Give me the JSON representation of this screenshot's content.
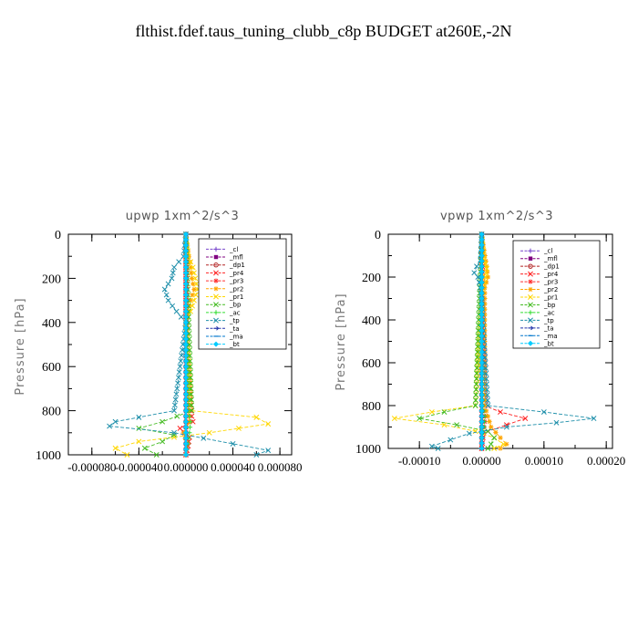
{
  "title": "flthist.fdef.taus_tuning_clubb_c8p  BUDGET at260E,-2N",
  "chart_data": [
    {
      "type": "line",
      "title": "upwp   1xm^2/s^3",
      "ylabel": "Pressure  [hPa]",
      "xlabel": "",
      "xlim": [
        -0.0001,
        9e-05
      ],
      "ylim": [
        1000,
        0
      ],
      "xticks": [
        -8e-05,
        -4e-05,
        0.0,
        4e-05,
        8e-05
      ],
      "xtick_labels": [
        "-0.000080",
        "-0.000040",
        "0.000000",
        "0.000040",
        "0.000080"
      ],
      "yticks": [
        0,
        200,
        400,
        600,
        800,
        1000
      ],
      "ytick_labels": [
        "0",
        "200",
        "400",
        "600",
        "800",
        "1000"
      ],
      "legend_position": "top-right",
      "series": [
        {
          "name": "_cl",
          "color": "#7744cc",
          "marker": "plus",
          "y": [
            0,
            100,
            200,
            300,
            400,
            500,
            600,
            700,
            800,
            850,
            900,
            950,
            1000
          ],
          "values": [
            0,
            0,
            0,
            0,
            0,
            0,
            0,
            0,
            0,
            0,
            0,
            0,
            0
          ]
        },
        {
          "name": "_mfl",
          "color": "#800080",
          "marker": "square",
          "y": [
            0,
            100,
            200,
            300,
            400,
            500,
            600,
            700,
            800,
            850,
            900,
            950,
            1000
          ],
          "values": [
            0,
            0,
            0,
            0,
            0,
            0,
            0,
            0,
            0,
            0,
            0,
            0,
            0
          ]
        },
        {
          "name": "_dp1",
          "color": "#b22222",
          "marker": "circle",
          "y": [
            0,
            100,
            200,
            300,
            400,
            500,
            600,
            700,
            800,
            850,
            900,
            950,
            1000
          ],
          "values": [
            0,
            0,
            0,
            0,
            0,
            0,
            0,
            0,
            0,
            0,
            0,
            0,
            0
          ]
        },
        {
          "name": "_pr4",
          "color": "#ff2020",
          "marker": "x",
          "y": [
            0,
            200,
            400,
            800,
            850,
            880,
            920,
            960,
            1000
          ],
          "values": [
            0,
            0,
            0,
            4e-06,
            6e-06,
            -5e-06,
            3e-06,
            2e-06,
            0
          ]
        },
        {
          "name": "_pr3",
          "color": "#ff3030",
          "marker": "star",
          "y": [
            0,
            800,
            850,
            900,
            950,
            1000
          ],
          "values": [
            0,
            2e-06,
            3e-06,
            -2e-06,
            1e-06,
            0
          ]
        },
        {
          "name": "_pr2",
          "color": "#ffa500",
          "marker": "star",
          "y": [
            0,
            150,
            200,
            250,
            300,
            350,
            400,
            800,
            850,
            900,
            950,
            1000
          ],
          "values": [
            0,
            4e-06,
            5e-06,
            7e-06,
            4e-06,
            2e-06,
            0,
            2e-06,
            3e-06,
            -2e-06,
            1e-06,
            0
          ]
        },
        {
          "name": "_pr1",
          "color": "#ffd700",
          "marker": "x",
          "y": [
            0,
            100,
            150,
            200,
            250,
            300,
            350,
            400,
            800,
            830,
            860,
            900,
            940,
            970,
            1000
          ],
          "values": [
            0,
            2e-06,
            6e-06,
            8e-06,
            1e-05,
            7e-06,
            4e-06,
            0,
            5e-06,
            6e-05,
            7e-05,
            2e-05,
            -4e-05,
            -6e-05,
            -5e-05
          ]
        },
        {
          "name": "_bp",
          "color": "#44bb22",
          "marker": "x",
          "y": [
            0,
            800,
            850,
            880,
            910,
            940,
            970,
            1000
          ],
          "values": [
            0,
            5e-06,
            -2e-05,
            -4e-05,
            -1e-05,
            -2e-05,
            -3.5e-05,
            -2.5e-05
          ]
        },
        {
          "name": "_ac",
          "color": "#33dd33",
          "marker": "plus",
          "y": [
            0,
            800,
            850,
            900,
            950,
            1000
          ],
          "values": [
            0,
            2e-06,
            4e-06,
            3e-06,
            2e-06,
            0
          ]
        },
        {
          "name": "_tp",
          "color": "#1e8faa",
          "marker": "x",
          "y": [
            0,
            100,
            150,
            200,
            250,
            300,
            350,
            400,
            800,
            830,
            850,
            870,
            900,
            950,
            980,
            1000
          ],
          "values": [
            0,
            -2e-06,
            -1e-05,
            -1.2e-05,
            -1.8e-05,
            -1.5e-05,
            -8e-06,
            0,
            -1e-05,
            -4e-05,
            -6e-05,
            -6.5e-05,
            -1e-05,
            4e-05,
            7e-05,
            6e-05
          ]
        },
        {
          "name": "_ta",
          "color": "#2233aa",
          "marker": "arrow",
          "y": [
            0,
            100,
            200,
            300,
            400,
            500,
            600,
            700,
            800,
            900,
            1000
          ],
          "values": [
            0,
            0,
            0,
            0,
            0,
            0,
            0,
            0,
            0,
            0,
            0
          ]
        },
        {
          "name": "_ma",
          "color": "#0077cc",
          "marker": "dash",
          "y": [
            0,
            100,
            200,
            300,
            400,
            500,
            600,
            700,
            800,
            900,
            1000
          ],
          "values": [
            0,
            0,
            0,
            0,
            0,
            0,
            0,
            0,
            0,
            0,
            0
          ]
        },
        {
          "name": "_bt",
          "color": "#00ccff",
          "marker": "diamond",
          "y": [
            0,
            100,
            200,
            300,
            400,
            500,
            600,
            700,
            800,
            900,
            1000
          ],
          "values": [
            0,
            0,
            0,
            0,
            0,
            0,
            0,
            0,
            0,
            0,
            0
          ]
        }
      ]
    },
    {
      "type": "line",
      "title": "vpwp   1xm^2/s^3",
      "ylabel": "Pressure  [hPa]",
      "xlabel": "",
      "xlim": [
        -0.00015,
        0.00021
      ],
      "ylim": [
        1000,
        0
      ],
      "xticks": [
        -0.0001,
        0.0,
        0.0001,
        0.0002
      ],
      "xtick_labels": [
        "-0.00010",
        "0.00000",
        "0.00010",
        "0.00020"
      ],
      "yticks": [
        0,
        200,
        400,
        600,
        800,
        1000
      ],
      "ytick_labels": [
        "0",
        "200",
        "400",
        "600",
        "800",
        "1000"
      ],
      "legend_position": "top-right",
      "series": [
        {
          "name": "_cl",
          "color": "#7744cc",
          "marker": "plus",
          "y": [
            0,
            100,
            200,
            300,
            400,
            500,
            600,
            700,
            800,
            850,
            900,
            950,
            1000
          ],
          "values": [
            0,
            0,
            0,
            0,
            0,
            0,
            0,
            0,
            0,
            0,
            0,
            0,
            0
          ]
        },
        {
          "name": "_mfl",
          "color": "#800080",
          "marker": "square",
          "y": [
            0,
            100,
            200,
            300,
            400,
            500,
            600,
            700,
            800,
            850,
            900,
            950,
            1000
          ],
          "values": [
            0,
            0,
            0,
            0,
            0,
            0,
            0,
            0,
            0,
            0,
            0,
            0,
            0
          ]
        },
        {
          "name": "_dp1",
          "color": "#b22222",
          "marker": "circle",
          "y": [
            0,
            100,
            200,
            300,
            400,
            500,
            600,
            700,
            800,
            850,
            900,
            950,
            1000
          ],
          "values": [
            0,
            0,
            0,
            0,
            0,
            0,
            0,
            0,
            0,
            0,
            0,
            0,
            0
          ]
        },
        {
          "name": "_pr4",
          "color": "#ff2020",
          "marker": "x",
          "y": [
            0,
            800,
            830,
            860,
            890,
            920,
            950,
            1000
          ],
          "values": [
            0,
            5e-06,
            3e-05,
            7e-05,
            4e-05,
            1e-05,
            2e-06,
            0
          ]
        },
        {
          "name": "_pr3",
          "color": "#ff3030",
          "marker": "star",
          "y": [
            0,
            800,
            850,
            900,
            950,
            1000
          ],
          "values": [
            0,
            2e-06,
            6e-06,
            4e-06,
            2e-06,
            0
          ]
        },
        {
          "name": "_pr2",
          "color": "#ffa500",
          "marker": "star",
          "y": [
            0,
            150,
            200,
            250,
            800,
            850,
            900,
            950,
            980,
            1000
          ],
          "values": [
            0,
            8e-06,
            1e-05,
            5e-06,
            5e-06,
            1e-05,
            1.5e-05,
            3e-05,
            4e-05,
            3e-05
          ]
        },
        {
          "name": "_pr1",
          "color": "#ffd700",
          "marker": "x",
          "y": [
            0,
            120,
            160,
            200,
            250,
            300,
            800,
            830,
            860,
            890,
            920,
            950,
            980,
            1000
          ],
          "values": [
            0,
            4e-06,
            8e-06,
            6e-06,
            3e-06,
            0,
            -1e-05,
            -8e-05,
            -0.00014,
            -6e-05,
            -1e-05,
            2e-05,
            3.5e-05,
            2e-05
          ]
        },
        {
          "name": "_bp",
          "color": "#44bb22",
          "marker": "x",
          "y": [
            0,
            800,
            830,
            860,
            890,
            920,
            950,
            980,
            1000
          ],
          "values": [
            0,
            -1e-05,
            -6e-05,
            -0.0001,
            -4e-05,
            1e-05,
            2e-05,
            1.5e-05,
            1e-05
          ]
        },
        {
          "name": "_ac",
          "color": "#33dd33",
          "marker": "plus",
          "y": [
            0,
            800,
            850,
            900,
            950,
            1000
          ],
          "values": [
            0,
            2e-06,
            5e-06,
            4e-06,
            2e-06,
            0
          ]
        },
        {
          "name": "_tp",
          "color": "#1e8faa",
          "marker": "x",
          "y": [
            0,
            120,
            150,
            180,
            200,
            250,
            300,
            800,
            830,
            860,
            880,
            900,
            930,
            960,
            990,
            1000
          ],
          "values": [
            0,
            -2e-06,
            -8e-06,
            -1.2e-05,
            -6e-06,
            -2e-06,
            0,
            1e-05,
            0.0001,
            0.00018,
            0.00012,
            4e-05,
            -2e-05,
            -5e-05,
            -8e-05,
            -7e-05
          ]
        },
        {
          "name": "_ta",
          "color": "#2233aa",
          "marker": "arrow",
          "y": [
            0,
            100,
            200,
            300,
            400,
            500,
            600,
            700,
            800,
            900,
            1000
          ],
          "values": [
            0,
            0,
            0,
            0,
            0,
            0,
            0,
            0,
            0,
            0,
            0
          ]
        },
        {
          "name": "_ma",
          "color": "#0077cc",
          "marker": "dash",
          "y": [
            0,
            100,
            200,
            300,
            400,
            500,
            600,
            700,
            800,
            900,
            1000
          ],
          "values": [
            0,
            0,
            0,
            0,
            0,
            0,
            0,
            0,
            0,
            0,
            0
          ]
        },
        {
          "name": "_bt",
          "color": "#00ccff",
          "marker": "diamond",
          "y": [
            0,
            100,
            200,
            300,
            400,
            500,
            600,
            700,
            800,
            900,
            1000
          ],
          "values": [
            0,
            0,
            0,
            0,
            0,
            0,
            0,
            0,
            0,
            0,
            0
          ]
        }
      ]
    }
  ]
}
